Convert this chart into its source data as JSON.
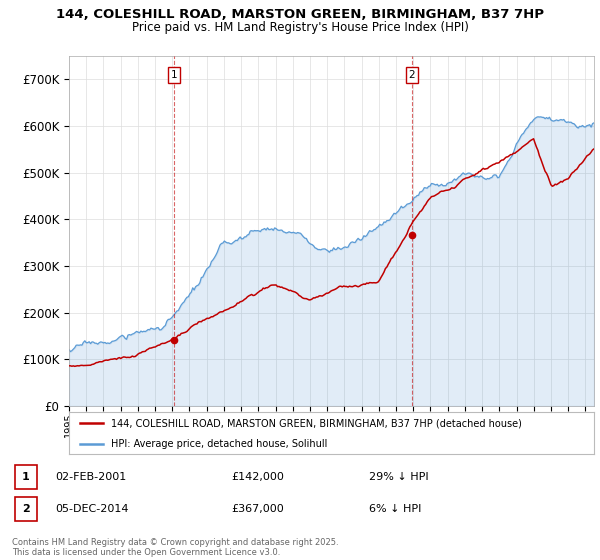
{
  "title_line1": "144, COLESHILL ROAD, MARSTON GREEN, BIRMINGHAM, B37 7HP",
  "title_line2": "Price paid vs. HM Land Registry's House Price Index (HPI)",
  "ylim": [
    0,
    750000
  ],
  "yticks": [
    0,
    100000,
    200000,
    300000,
    400000,
    500000,
    600000,
    700000
  ],
  "ytick_labels": [
    "£0",
    "£100K",
    "£200K",
    "£300K",
    "£400K",
    "£500K",
    "£600K",
    "£700K"
  ],
  "hpi_color": "#5b9bd5",
  "price_color": "#c00000",
  "marker1_date": 2001.09,
  "marker1_price": 142000,
  "marker2_date": 2014.92,
  "marker2_price": 367000,
  "vline_color": "#c00000",
  "legend_line1": "144, COLESHILL ROAD, MARSTON GREEN, BIRMINGHAM, B37 7HP (detached house)",
  "legend_line2": "HPI: Average price, detached house, Solihull",
  "footnote": "Contains HM Land Registry data © Crown copyright and database right 2025.\nThis data is licensed under the Open Government Licence v3.0.",
  "background_color": "#ffffff",
  "grid_color": "#dddddd",
  "xstart": 1995,
  "xend": 2025.5
}
